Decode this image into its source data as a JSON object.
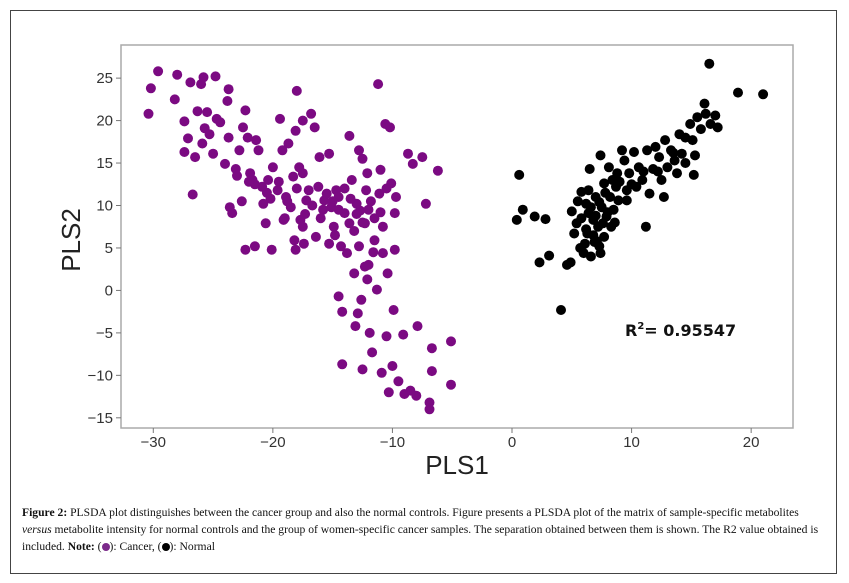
{
  "chart_data": {
    "type": "scatter",
    "title": "",
    "xlabel": "PLS1",
    "ylabel": "PLS2",
    "xlim": [
      -32.7,
      23.5
    ],
    "ylim": [
      -16.2,
      28.9
    ],
    "xticks": [
      -30,
      -20,
      -10,
      0,
      10,
      20
    ],
    "yticks": [
      25,
      20,
      15,
      10,
      5,
      0,
      -5,
      -10,
      -15
    ],
    "xtick_labels": [
      "−30",
      "−20",
      "−10",
      "0",
      "10",
      "20"
    ],
    "ytick_labels": [
      "25",
      "20",
      "15",
      "10",
      "5",
      "0",
      "−5",
      "−10",
      "−15"
    ],
    "grid": false,
    "annotation": {
      "prefix": "R",
      "sup": "2",
      "text": "= 0.95547"
    },
    "series": [
      {
        "name": "Cancer",
        "color": "#7b0a82",
        "points": [
          [
            -30.4,
            20.8
          ],
          [
            -30.2,
            23.8
          ],
          [
            -29.6,
            25.8
          ],
          [
            -28.2,
            22.5
          ],
          [
            -28,
            25.4
          ],
          [
            -27.4,
            19.9
          ],
          [
            -27.4,
            16.3
          ],
          [
            -27.1,
            17.9
          ],
          [
            -26.9,
            24.5
          ],
          [
            -26.7,
            11.3
          ],
          [
            -26.5,
            15.7
          ],
          [
            -26.3,
            21.1
          ],
          [
            -26,
            24.3
          ],
          [
            -25.8,
            25.1
          ],
          [
            -25.9,
            17.3
          ],
          [
            -25.7,
            19.1
          ],
          [
            -25.5,
            21
          ],
          [
            -25.3,
            18.4
          ],
          [
            -24.8,
            25.2
          ],
          [
            -25,
            16.1
          ],
          [
            -24.7,
            20.2
          ],
          [
            -24.4,
            19.8
          ],
          [
            -24,
            14.9
          ],
          [
            -23.8,
            22.3
          ],
          [
            -23.7,
            23.7
          ],
          [
            -23.7,
            18
          ],
          [
            -23.6,
            9.8
          ],
          [
            -23.4,
            9.1
          ],
          [
            -23.1,
            14.3
          ],
          [
            -22.8,
            16.5
          ],
          [
            -22.6,
            10.5
          ],
          [
            -22.5,
            19.2
          ],
          [
            -22.3,
            21.2
          ],
          [
            -22.3,
            4.8
          ],
          [
            -22.1,
            18
          ],
          [
            -21.9,
            13.8
          ],
          [
            -21.7,
            13
          ],
          [
            -21.5,
            5.2
          ],
          [
            -21.4,
            17.7
          ],
          [
            -21.2,
            16.5
          ],
          [
            -20.9,
            12.2
          ],
          [
            -20.8,
            10.2
          ],
          [
            -20.6,
            7.9
          ],
          [
            -20.4,
            13
          ],
          [
            -20.1,
            4.8
          ],
          [
            -20,
            14.5
          ],
          [
            -19.6,
            11.8
          ],
          [
            -19.4,
            20.2
          ],
          [
            -19.2,
            16.5
          ],
          [
            -19.1,
            8.3
          ],
          [
            -18.9,
            11
          ],
          [
            -18.7,
            17.3
          ],
          [
            -18.5,
            9.8
          ],
          [
            -18.3,
            13.4
          ],
          [
            -18.2,
            5.9
          ],
          [
            -18.1,
            4.8
          ],
          [
            -18.1,
            18.8
          ],
          [
            -18,
            23.5
          ],
          [
            -17.8,
            14.5
          ],
          [
            -17.7,
            8.3
          ],
          [
            -17.5,
            20
          ],
          [
            -17.5,
            13.8
          ],
          [
            -17.4,
            5.5
          ],
          [
            -17.2,
            10.6
          ],
          [
            -17,
            11.8
          ],
          [
            -16.8,
            20.8
          ],
          [
            -16.5,
            19.2
          ],
          [
            -16.4,
            6.3
          ],
          [
            -16.2,
            12.2
          ],
          [
            -16.1,
            15.7
          ],
          [
            -15.8,
            9.5
          ],
          [
            -15.7,
            10.6
          ],
          [
            -15.5,
            11.4
          ],
          [
            -15.3,
            16.1
          ],
          [
            -15.3,
            5.5
          ],
          [
            -15.1,
            9.8
          ],
          [
            -14.9,
            7.5
          ],
          [
            -14.7,
            11.8
          ],
          [
            -14.5,
            -0.7
          ],
          [
            -14.5,
            11
          ],
          [
            -14.3,
            5.2
          ],
          [
            -14.2,
            -2.5
          ],
          [
            -14.2,
            -8.7
          ],
          [
            -14,
            9.1
          ],
          [
            -13.8,
            4.4
          ],
          [
            -13.6,
            18.2
          ],
          [
            -13.6,
            7.9
          ],
          [
            -13.4,
            13
          ],
          [
            -13.2,
            2
          ],
          [
            -13.1,
            -4.2
          ],
          [
            -13,
            10.2
          ],
          [
            -12.9,
            -2.7
          ],
          [
            -12.8,
            16.5
          ],
          [
            -12.7,
            9.4
          ],
          [
            -12.6,
            -1.1
          ],
          [
            -12.5,
            -9.3
          ],
          [
            -12.3,
            2.8
          ],
          [
            -12.3,
            7.9
          ],
          [
            -12.1,
            13.8
          ],
          [
            -12.1,
            1.3
          ],
          [
            -11.9,
            -5
          ],
          [
            -11.7,
            -7.3
          ],
          [
            -11.5,
            5.9
          ],
          [
            -11.3,
            0.1
          ],
          [
            -11.2,
            24.3
          ],
          [
            -11.1,
            11.4
          ],
          [
            -10.9,
            -9.7
          ],
          [
            -10.8,
            4.4
          ],
          [
            -10.6,
            19.6
          ],
          [
            -10.5,
            -5.4
          ],
          [
            -10.4,
            2
          ],
          [
            -10.3,
            -12
          ],
          [
            -10.2,
            19.2
          ],
          [
            -10.1,
            12.6
          ],
          [
            -10,
            -8.9
          ],
          [
            -9.9,
            -2.3
          ],
          [
            -9.8,
            4.8
          ],
          [
            -9.8,
            9.1
          ],
          [
            -9.7,
            11
          ],
          [
            -9.5,
            -10.7
          ],
          [
            -9.1,
            -5.2
          ],
          [
            -9,
            -12.2
          ],
          [
            -8.7,
            16.1
          ],
          [
            -8.5,
            -11.8
          ],
          [
            -8.3,
            14.9
          ],
          [
            -8,
            -12.4
          ],
          [
            -7.9,
            -4.2
          ],
          [
            -7.5,
            15.7
          ],
          [
            -7.2,
            10.2
          ],
          [
            -6.9,
            -13.2
          ],
          [
            -6.9,
            -14
          ],
          [
            -6.7,
            -6.8
          ],
          [
            -6.7,
            -9.5
          ],
          [
            -6.2,
            14.1
          ],
          [
            -5.1,
            -6
          ],
          [
            -5.1,
            -11.1
          ],
          [
            -21.5,
            12.5
          ],
          [
            -20.5,
            11.5
          ],
          [
            -19.5,
            12.8
          ],
          [
            -18.8,
            10.5
          ],
          [
            -18,
            12
          ],
          [
            -17.3,
            9
          ],
          [
            -16.7,
            10
          ],
          [
            -16,
            8.5
          ],
          [
            -15,
            10.5
          ],
          [
            -14.5,
            9.5
          ],
          [
            -14,
            12
          ],
          [
            -13.5,
            10.8
          ],
          [
            -13,
            9
          ],
          [
            -12.5,
            8
          ],
          [
            -12,
            9.5
          ],
          [
            -11.8,
            10.5
          ],
          [
            -11.5,
            8.5
          ],
          [
            -11,
            9.2
          ],
          [
            -10.8,
            7.5
          ],
          [
            -12.2,
            11.8
          ],
          [
            -13.2,
            7
          ],
          [
            -14.8,
            6.5
          ],
          [
            -12.8,
            5.2
          ],
          [
            -11.6,
            4.5
          ],
          [
            -12,
            3
          ],
          [
            -10.5,
            12
          ],
          [
            -11,
            14.2
          ],
          [
            -12.5,
            15.5
          ],
          [
            -19,
            8.5
          ],
          [
            -20.2,
            10.8
          ],
          [
            -22,
            12.8
          ],
          [
            -23,
            13.5
          ],
          [
            -17.5,
            7.5
          ]
        ]
      },
      {
        "name": "Normal",
        "color": "#000000",
        "points": [
          [
            0.4,
            8.3
          ],
          [
            0.6,
            13.6
          ],
          [
            0.9,
            9.5
          ],
          [
            1.9,
            8.7
          ],
          [
            2.3,
            3.3
          ],
          [
            2.8,
            8.4
          ],
          [
            3.1,
            4.1
          ],
          [
            4.1,
            -2.3
          ],
          [
            4.6,
            3
          ],
          [
            4.9,
            3.3
          ],
          [
            5,
            9.3
          ],
          [
            5.2,
            6.7
          ],
          [
            5.4,
            7.9
          ],
          [
            5.7,
            5
          ],
          [
            5.8,
            11.6
          ],
          [
            6,
            4.4
          ],
          [
            6.2,
            10.2
          ],
          [
            6.3,
            6.7
          ],
          [
            6.4,
            9.1
          ],
          [
            6.5,
            14.3
          ],
          [
            6.6,
            4
          ],
          [
            6.8,
            8.3
          ],
          [
            6.9,
            5.7
          ],
          [
            7,
            11
          ],
          [
            7.2,
            7.5
          ],
          [
            7.3,
            5.2
          ],
          [
            7.4,
            15.9
          ],
          [
            7.4,
            4.4
          ],
          [
            7.5,
            9.8
          ],
          [
            7.7,
            12.6
          ],
          [
            7.7,
            6.3
          ],
          [
            7.9,
            8.7
          ],
          [
            8.1,
            14.5
          ],
          [
            8.2,
            11
          ],
          [
            8.3,
            7.5
          ],
          [
            8.5,
            9.5
          ],
          [
            8.7,
            12.2
          ],
          [
            8.8,
            13.8
          ],
          [
            8.9,
            10.6
          ],
          [
            9.2,
            16.5
          ],
          [
            9.4,
            15.3
          ],
          [
            9.6,
            11.8
          ],
          [
            9.8,
            13.8
          ],
          [
            10.2,
            16.3
          ],
          [
            10.4,
            12.2
          ],
          [
            10.6,
            14.5
          ],
          [
            10.9,
            13
          ],
          [
            11.2,
            7.5
          ],
          [
            11.3,
            16.5
          ],
          [
            11.5,
            11.4
          ],
          [
            11.8,
            14.3
          ],
          [
            12,
            16.9
          ],
          [
            12.3,
            15.7
          ],
          [
            12.5,
            13
          ],
          [
            12.7,
            11
          ],
          [
            12.8,
            17.7
          ],
          [
            13,
            14.5
          ],
          [
            13.3,
            16.5
          ],
          [
            13.6,
            15.3
          ],
          [
            13.8,
            13.8
          ],
          [
            14,
            18.4
          ],
          [
            14.2,
            16.1
          ],
          [
            14.5,
            18
          ],
          [
            14.9,
            19.6
          ],
          [
            15.1,
            17.7
          ],
          [
            15.2,
            13.6
          ],
          [
            15.3,
            15.9
          ],
          [
            15.5,
            20.4
          ],
          [
            15.8,
            19
          ],
          [
            16.1,
            22
          ],
          [
            16.2,
            20.8
          ],
          [
            16.5,
            26.7
          ],
          [
            16.6,
            19.6
          ],
          [
            17,
            20.6
          ],
          [
            17.2,
            19.2
          ],
          [
            18.9,
            23.3
          ],
          [
            21,
            23.1
          ],
          [
            5.8,
            8.5
          ],
          [
            6.2,
            7.2
          ],
          [
            6.6,
            9.8
          ],
          [
            7,
            8.8
          ],
          [
            7.3,
            10.4
          ],
          [
            7.6,
            7.9
          ],
          [
            6.8,
            6.5
          ],
          [
            8,
            9.2
          ],
          [
            7.8,
            11.5
          ],
          [
            6.4,
            11.8
          ],
          [
            5.5,
            10.5
          ],
          [
            8.6,
            8
          ],
          [
            7.1,
            5.8
          ],
          [
            6.1,
            5.5
          ],
          [
            9,
            12.8
          ],
          [
            10,
            12.5
          ],
          [
            11,
            14
          ],
          [
            12.2,
            14
          ],
          [
            13.5,
            16.2
          ],
          [
            14.5,
            15
          ],
          [
            9.6,
            10.6
          ],
          [
            8.4,
            13
          ]
        ]
      }
    ]
  },
  "caption": {
    "label": "Figure 2:",
    "text1": " PLSDA plot distinguishes between the cancer group and also the normal controls. Figure presents a PLSDA plot of the matrix of sample-specific metabolites ",
    "italic": "versus",
    "text2": " metabolite intensity for normal controls and the group of women-specific cancer samples. The separation obtained between them is shown. The R2 value obtained is included. ",
    "note_label": "Note:",
    "note_open1": " (",
    "note_close1": "): Cancer, (",
    "note_close2": "): Normal"
  }
}
